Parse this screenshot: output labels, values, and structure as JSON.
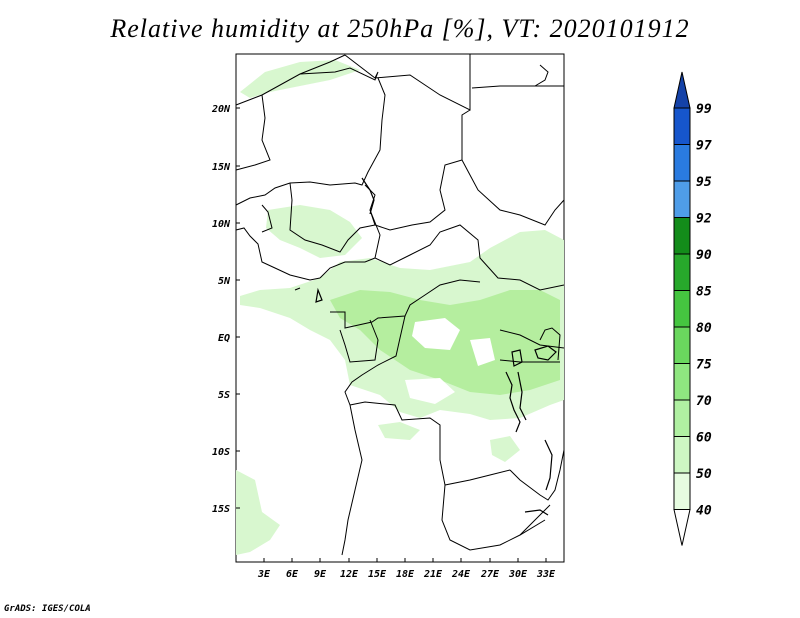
{
  "title": "Relative humidity at 250hPa [%], VT: 2020101912",
  "credit": "GrADS: IGES/COLA",
  "lat_labels": [
    "20N",
    "15N",
    "10N",
    "5N",
    "EQ",
    "5S",
    "10S",
    "15S"
  ],
  "lon_labels": [
    "3E",
    "6E",
    "9E",
    "12E",
    "15E",
    "18E",
    "21E",
    "24E",
    "27E",
    "30E",
    "33E"
  ],
  "colorbar": {
    "levels": [
      "40",
      "50",
      "60",
      "70",
      "75",
      "80",
      "85",
      "90",
      "92",
      "95",
      "97",
      "99"
    ],
    "colors": [
      "#ffffff",
      "#e6fce0",
      "#cdf7c3",
      "#b0f0a2",
      "#8fe680",
      "#6ad75e",
      "#45c540",
      "#27a82b",
      "#138c1a",
      "#4f9de8",
      "#2a7be0",
      "#1656cc",
      "#1442a8"
    ]
  },
  "colors": {
    "humid_light": "#d8f7cf",
    "humid_mid": "#b5ee9f",
    "border": "#000000",
    "background": "#ffffff"
  }
}
